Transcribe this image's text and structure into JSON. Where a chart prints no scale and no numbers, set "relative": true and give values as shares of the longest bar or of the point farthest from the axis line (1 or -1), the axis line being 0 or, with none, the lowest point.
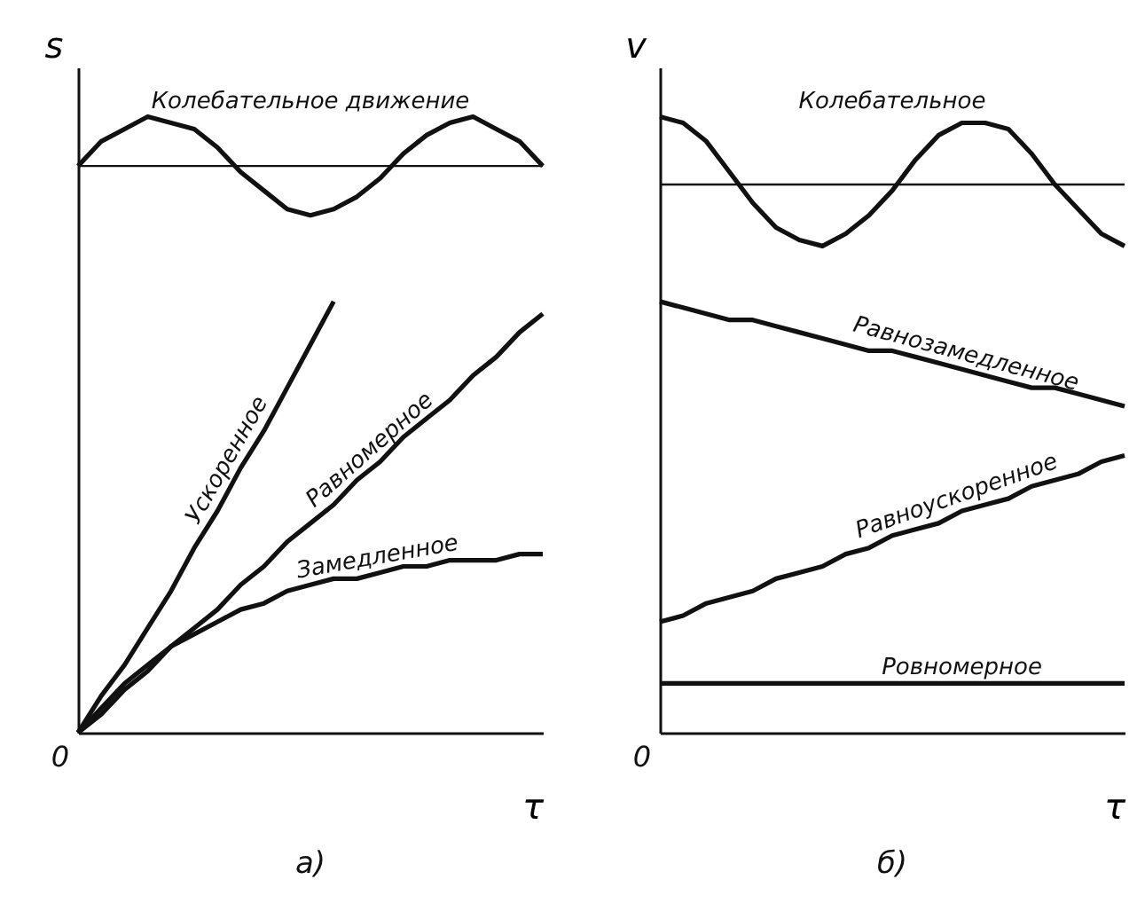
{
  "chart_data": [
    {
      "type": "line",
      "relative": true,
      "xlabel": "τ",
      "ylabel": "s",
      "annotations": [
        "0",
        "а)"
      ],
      "categories": [
        null,
        null,
        null,
        null,
        null,
        null,
        null,
        null,
        null,
        null,
        null,
        null,
        null,
        null,
        null,
        null,
        null,
        null,
        null,
        null,
        null
      ],
      "ref_lines": [
        {
          "axis": "y",
          "value": 0.92
        }
      ],
      "series": [
        {
          "name": "Колебательное движение",
          "color": "#111111",
          "values": [
            0.92,
            0.96,
            0.98,
            1.0,
            0.99,
            0.98,
            0.95,
            0.91,
            0.88,
            0.85,
            0.84,
            0.85,
            0.87,
            0.9,
            0.94,
            0.97,
            0.99,
            1.0,
            0.98,
            0.96,
            0.92
          ]
        },
        {
          "name": "Ускоренное",
          "color": "#111111",
          "values": [
            0,
            0.06,
            0.11,
            0.17,
            0.23,
            0.3,
            0.36,
            0.43,
            0.49,
            0.56,
            0.63,
            0.7,
            null,
            null,
            null,
            null,
            null,
            null,
            null,
            null,
            null
          ]
        },
        {
          "name": "Равномерное",
          "color": "#111111",
          "values": [
            0,
            0.03,
            0.07,
            0.1,
            0.14,
            0.17,
            0.2,
            0.24,
            0.27,
            0.31,
            0.34,
            0.37,
            0.41,
            0.44,
            0.48,
            0.51,
            0.54,
            0.58,
            0.61,
            0.65,
            0.68
          ]
        },
        {
          "name": "Замедленное",
          "color": "#111111",
          "values": [
            0,
            0.04,
            0.08,
            0.11,
            0.14,
            0.16,
            0.18,
            0.2,
            0.21,
            0.23,
            0.24,
            0.25,
            0.25,
            0.26,
            0.27,
            0.27,
            0.28,
            0.28,
            0.28,
            0.29,
            0.29
          ]
        }
      ]
    },
    {
      "type": "line",
      "relative": true,
      "xlabel": "τ",
      "ylabel": "v",
      "annotations": [
        "0",
        "б)"
      ],
      "categories": [
        null,
        null,
        null,
        null,
        null,
        null,
        null,
        null,
        null,
        null,
        null,
        null,
        null,
        null,
        null,
        null,
        null,
        null,
        null,
        null,
        null
      ],
      "ref_lines": [
        {
          "axis": "y",
          "value": 0.89
        }
      ],
      "series": [
        {
          "name": "Колебательное",
          "color": "#111111",
          "values": [
            1.0,
            0.99,
            0.96,
            0.91,
            0.86,
            0.82,
            0.8,
            0.79,
            0.81,
            0.84,
            0.88,
            0.93,
            0.97,
            0.99,
            0.99,
            0.98,
            0.94,
            0.89,
            0.85,
            0.81,
            0.79
          ]
        },
        {
          "name": "Равнозамедленное",
          "color": "#111111",
          "values": [
            0.7,
            0.69,
            0.68,
            0.67,
            0.67,
            0.66,
            0.65,
            0.64,
            0.63,
            0.62,
            0.62,
            0.61,
            0.6,
            0.59,
            0.58,
            0.57,
            0.56,
            0.56,
            0.55,
            0.54,
            0.53
          ]
        },
        {
          "name": "Равноускоренное",
          "color": "#111111",
          "values": [
            0.18,
            0.19,
            0.21,
            0.22,
            0.23,
            0.25,
            0.26,
            0.27,
            0.29,
            0.3,
            0.32,
            0.33,
            0.34,
            0.36,
            0.37,
            0.38,
            0.4,
            0.41,
            0.42,
            0.44,
            0.45
          ]
        },
        {
          "name": "Ровномерное",
          "color": "#111111",
          "values": [
            0.08,
            0.08,
            0.08,
            0.08,
            0.08,
            0.08,
            0.08,
            0.08,
            0.08,
            0.08,
            0.08,
            0.08,
            0.08,
            0.08,
            0.08,
            0.08,
            0.08,
            0.08,
            0.08,
            0.08,
            0.08
          ]
        }
      ]
    }
  ]
}
